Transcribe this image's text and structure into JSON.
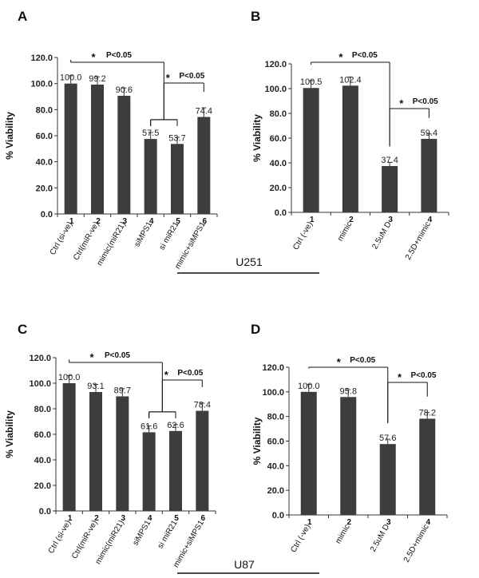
{
  "chart_data": [
    {
      "panel": "A",
      "type": "bar",
      "ylabel": "% Viability",
      "ylim": [
        0,
        120
      ],
      "yticks": [
        "0.0",
        "20.0",
        "40.0",
        "60.0",
        "80.0",
        "100.0",
        "120.0"
      ],
      "numbers": [
        "1",
        "2",
        "3",
        "4",
        "5",
        "6"
      ],
      "categories": [
        "Ctrl (si-ve)",
        "Ctrl(miR-ve)",
        "mimic(miR21)",
        "siMPS1",
        "si miR21",
        "mimic+siMPS1"
      ],
      "values": [
        100.0,
        99.2,
        90.6,
        57.5,
        53.7,
        74.4
      ],
      "value_labels": [
        "100.0",
        "99.2",
        "90.6",
        "57.5",
        "53.7",
        "74.4"
      ],
      "errors": [
        6,
        6,
        6,
        5,
        5,
        7
      ],
      "significance": [
        {
          "star": "*",
          "label": "P<0.05"
        },
        {
          "star": "*",
          "label": "P<0.05"
        }
      ]
    },
    {
      "panel": "B",
      "type": "bar",
      "ylabel": "% Viability",
      "ylim": [
        0,
        120
      ],
      "yticks": [
        "0.0",
        "20.0",
        "40.0",
        "60.0",
        "80.0",
        "100.0",
        "120.0"
      ],
      "numbers": [
        "1",
        "2",
        "3",
        "4"
      ],
      "categories": [
        "Ctrl (-ve)",
        "mimic",
        "2.5uM D",
        "2.5D+mimic"
      ],
      "values": [
        100.5,
        102.4,
        37.4,
        59.4
      ],
      "value_labels": [
        "100.5",
        "102.4",
        "37.4",
        "59.4"
      ],
      "errors": [
        6,
        7,
        3,
        4
      ],
      "significance": [
        {
          "star": "*",
          "label": "P<0.05"
        },
        {
          "star": "*",
          "label": "P<0.05"
        }
      ]
    },
    {
      "panel": "C",
      "type": "bar",
      "ylabel": "% Viability",
      "ylim": [
        0,
        120
      ],
      "yticks": [
        "0.0",
        "20.0",
        "40.0",
        "60.0",
        "80.0",
        "100.0",
        "120.0"
      ],
      "numbers": [
        "1",
        "2",
        "3",
        "4",
        "5",
        "6"
      ],
      "categories": [
        "Ctrl (si-ve)",
        "Ctrl(miR-ve)",
        "mimic(miR21)",
        "siMPS1",
        "si miR21",
        "mimic+siMPS1"
      ],
      "values": [
        100.0,
        93.1,
        89.7,
        61.6,
        62.6,
        78.4
      ],
      "value_labels": [
        "100.0",
        "93.1",
        "89.7",
        "61.6",
        "62.6",
        "78.4"
      ],
      "errors": [
        6,
        6,
        6,
        5,
        5,
        6
      ],
      "significance": [
        {
          "star": "*",
          "label": "P<0.05"
        },
        {
          "star": "*",
          "label": "P<0.05"
        }
      ]
    },
    {
      "panel": "D",
      "type": "bar",
      "ylabel": "% Viability",
      "ylim": [
        0,
        120
      ],
      "yticks": [
        "0.0",
        "20.0",
        "40.0",
        "60.0",
        "80.0",
        "100.0",
        "120.0"
      ],
      "numbers": [
        "1",
        "2",
        "3",
        "4"
      ],
      "categories": [
        "Ctrl (-ve)",
        "mimic",
        "2.5uM D",
        "2.5D+mimic"
      ],
      "values": [
        100.0,
        95.8,
        57.6,
        78.2
      ],
      "value_labels": [
        "100.0",
        "95.8",
        "57.6",
        "78.2"
      ],
      "errors": [
        6,
        6,
        4,
        5
      ],
      "significance": [
        {
          "star": "*",
          "label": "P<0.05"
        },
        {
          "star": "*",
          "label": "P<0.05"
        }
      ]
    }
  ],
  "cell_lines": [
    "U251",
    "U87"
  ],
  "colors": {
    "bar": "#3d3d3d",
    "axis": "#333333",
    "text": "#111111"
  }
}
